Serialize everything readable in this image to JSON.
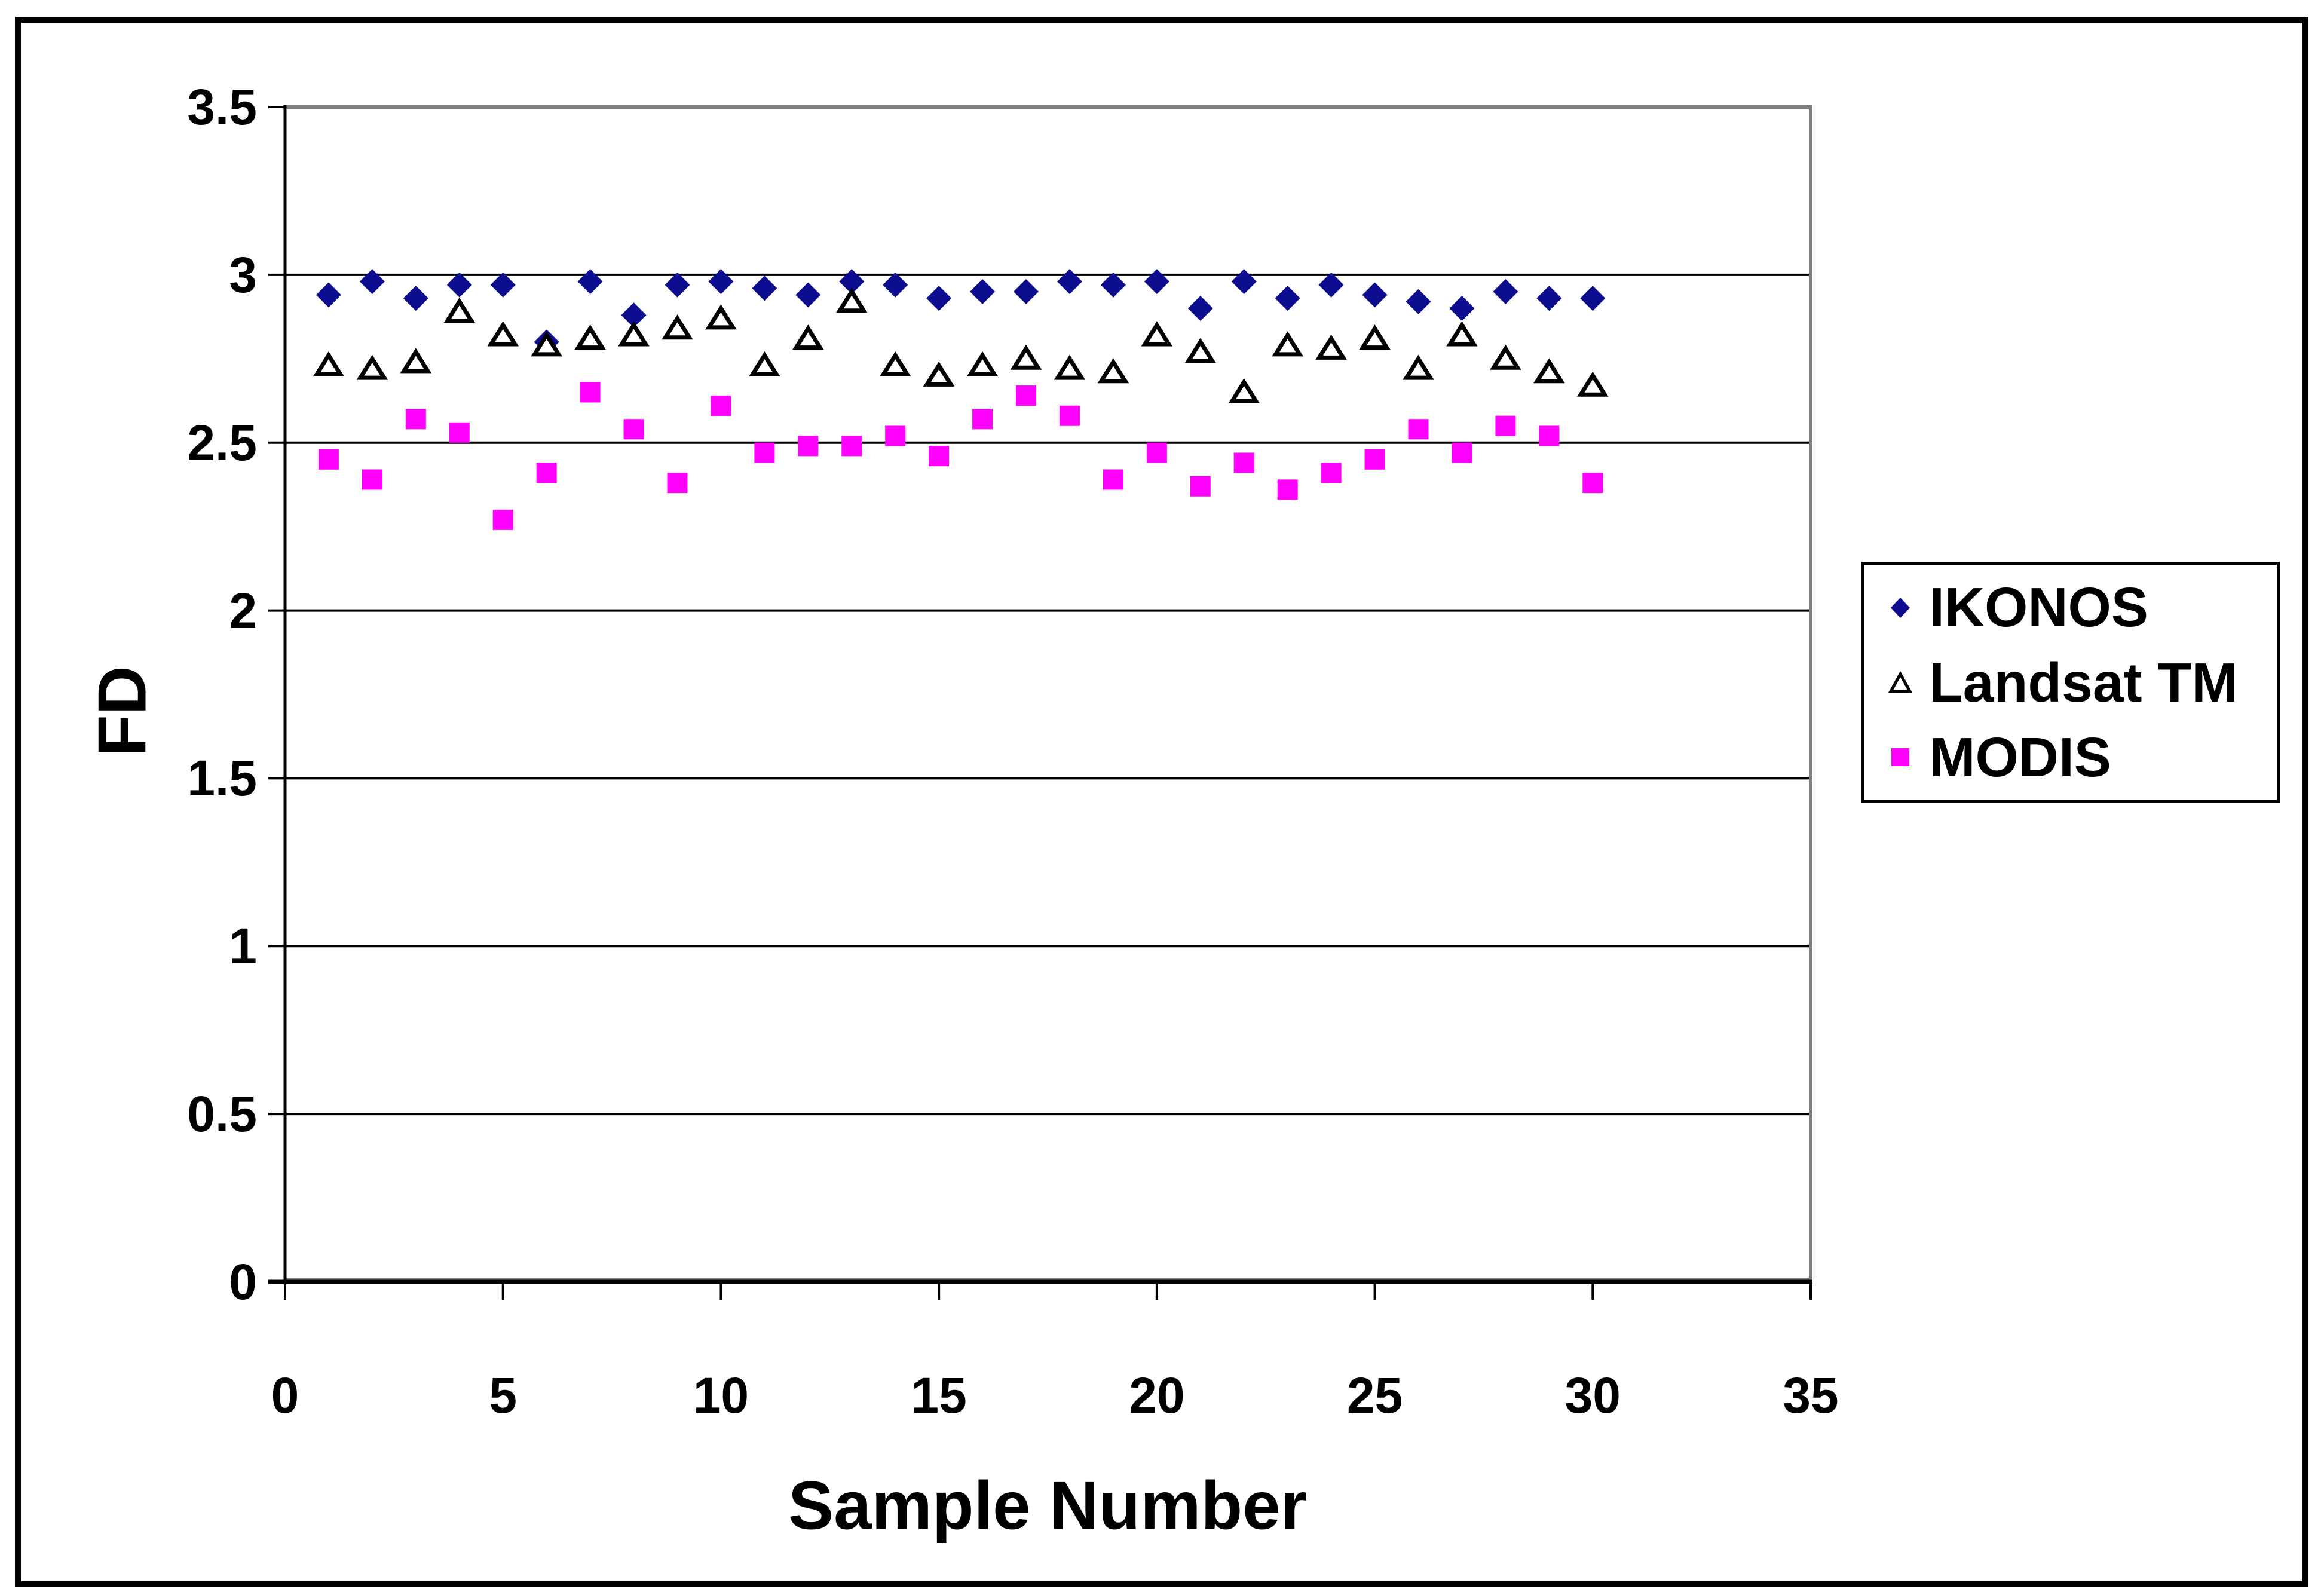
{
  "figure": {
    "background_color": "#FFFFFF",
    "border_color": "#000000"
  },
  "chart_data": {
    "type": "scatter",
    "title": "",
    "xlabel": "Sample Number",
    "ylabel": "FD",
    "xlim": [
      0,
      35
    ],
    "ylim": [
      0,
      3.5
    ],
    "x_ticks": [
      0,
      5,
      10,
      15,
      20,
      25,
      30,
      35
    ],
    "y_ticks": [
      0,
      0.5,
      1,
      1.5,
      2,
      2.5,
      3,
      3.5
    ],
    "grid": "horizontal",
    "gridline_color": "#000000",
    "plot_border_color": "#7F7F7F",
    "legend_position": "right",
    "x": [
      1,
      2,
      3,
      4,
      5,
      6,
      7,
      8,
      9,
      10,
      11,
      12,
      13,
      14,
      15,
      16,
      17,
      18,
      19,
      20,
      21,
      22,
      23,
      24,
      25,
      26,
      27,
      28,
      29,
      30
    ],
    "series": [
      {
        "name": "IKONOS",
        "marker": "diamond",
        "color": "#0D0D8F",
        "values": [
          2.94,
          2.98,
          2.93,
          2.97,
          2.97,
          2.8,
          2.98,
          2.88,
          2.97,
          2.98,
          2.96,
          2.94,
          2.98,
          2.97,
          2.93,
          2.95,
          2.95,
          2.98,
          2.97,
          2.98,
          2.9,
          2.98,
          2.93,
          2.97,
          2.94,
          2.92,
          2.9,
          2.95,
          2.93,
          2.93
        ]
      },
      {
        "name": "Landsat TM",
        "marker": "triangle-open",
        "color": "#000000",
        "values": [
          2.73,
          2.72,
          2.74,
          2.89,
          2.82,
          2.79,
          2.81,
          2.82,
          2.84,
          2.87,
          2.73,
          2.81,
          2.92,
          2.73,
          2.7,
          2.73,
          2.75,
          2.72,
          2.71,
          2.82,
          2.77,
          2.65,
          2.79,
          2.78,
          2.81,
          2.72,
          2.82,
          2.75,
          2.71,
          2.67
        ]
      },
      {
        "name": "MODIS",
        "marker": "square",
        "color": "#FF00FF",
        "values": [
          2.45,
          2.39,
          2.57,
          2.53,
          2.27,
          2.41,
          2.65,
          2.54,
          2.38,
          2.61,
          2.47,
          2.49,
          2.49,
          2.52,
          2.46,
          2.57,
          2.64,
          2.58,
          2.39,
          2.47,
          2.37,
          2.44,
          2.36,
          2.41,
          2.45,
          2.54,
          2.47,
          2.55,
          2.52,
          2.38
        ]
      }
    ]
  }
}
